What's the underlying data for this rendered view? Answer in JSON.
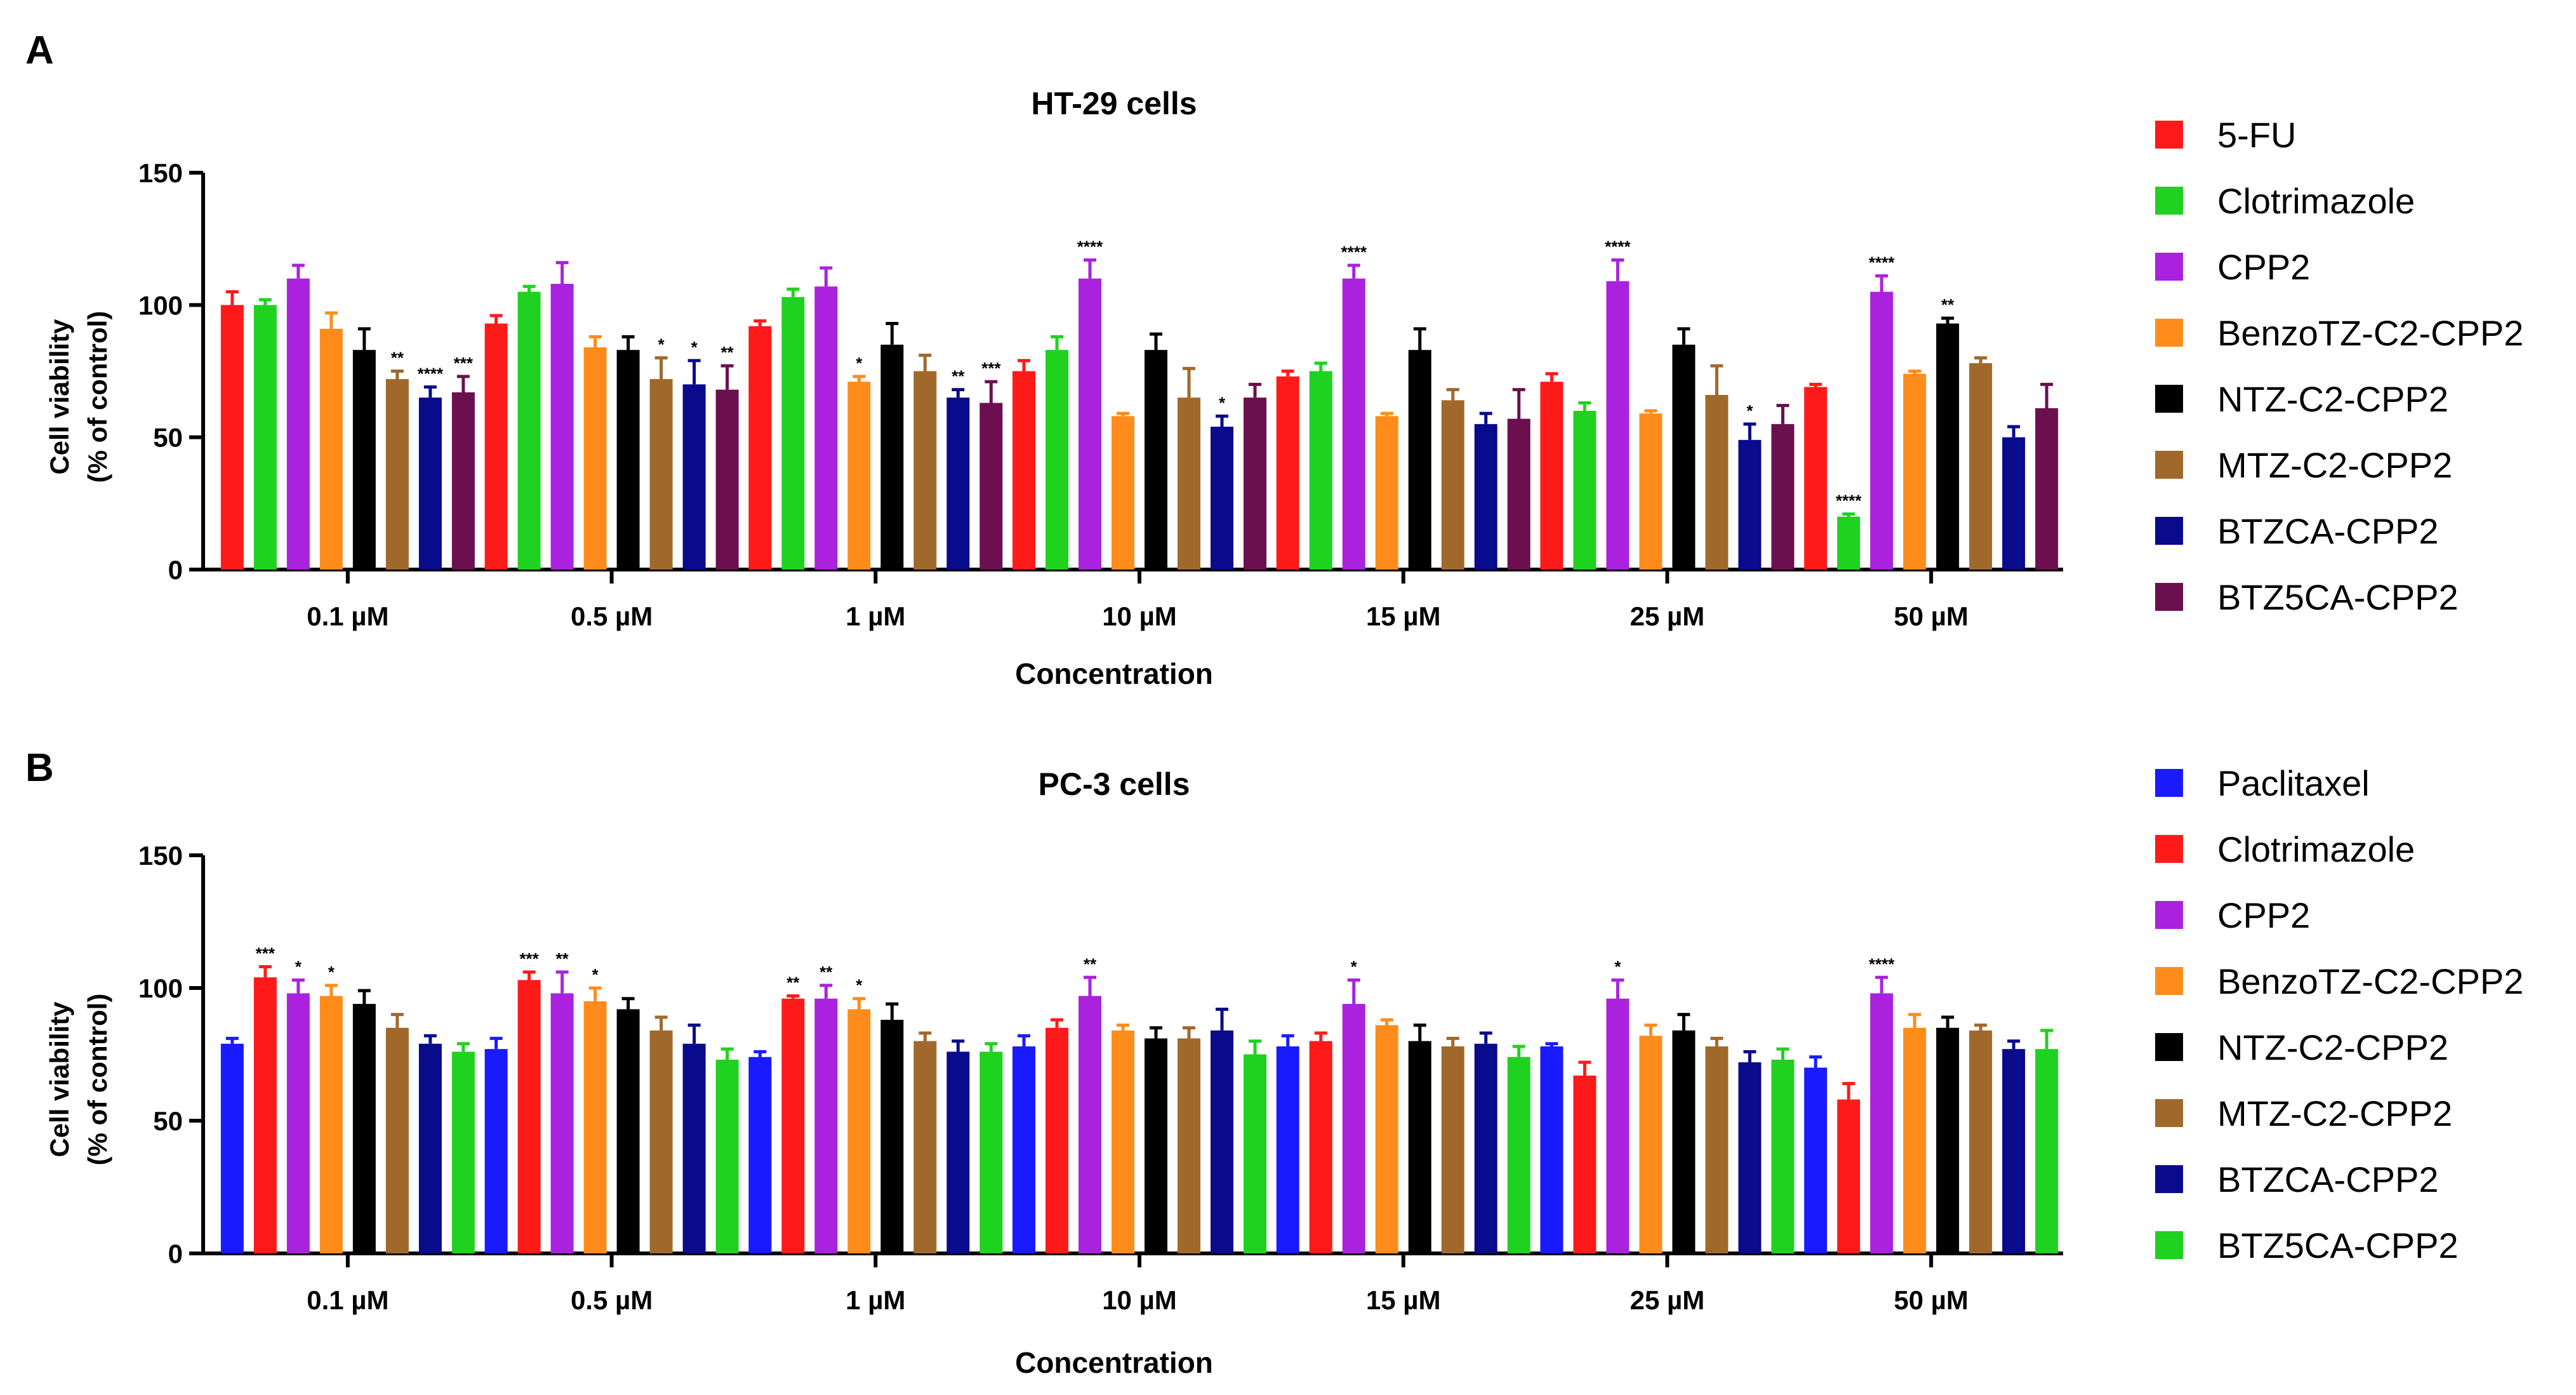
{
  "chart_data": [
    {
      "panel": "A",
      "type": "bar",
      "title": "HT-29 cells",
      "xlabel": "Concentration",
      "ylabel_lines": [
        "Cell viability",
        "(% of control)"
      ],
      "ylim": [
        0,
        150
      ],
      "yticks": [
        0,
        50,
        100,
        150
      ],
      "categories": [
        "0.1 µM",
        "0.5 µM",
        "1 µM",
        "10 µM",
        "15 µM",
        "25 µM",
        "50 µM"
      ],
      "series": [
        {
          "name": "5-FU",
          "color": "#ff1a1a",
          "values": [
            100,
            93,
            92,
            75,
            73,
            71,
            69
          ],
          "errors": [
            5,
            3,
            2,
            4,
            2,
            3,
            1
          ],
          "stars": [
            "",
            "",
            "",
            "",
            "",
            "",
            ""
          ]
        },
        {
          "name": "Clotrimazole",
          "color": "#1fd21f",
          "values": [
            100,
            105,
            103,
            83,
            75,
            60,
            20
          ],
          "errors": [
            2,
            2,
            3,
            5,
            3,
            3,
            1
          ],
          "stars": [
            "",
            "",
            "",
            "",
            "",
            "",
            "****"
          ]
        },
        {
          "name": "CPP2",
          "color": "#aa22dd",
          "values": [
            110,
            108,
            107,
            110,
            110,
            109,
            105
          ],
          "errors": [
            5,
            8,
            7,
            7,
            5,
            8,
            6
          ],
          "stars": [
            "",
            "",
            "",
            "****",
            "****",
            "****",
            "****"
          ]
        },
        {
          "name": "BenzoTZ-C2-CPP2",
          "color": "#ff8c1a",
          "values": [
            91,
            84,
            71,
            58,
            58,
            59,
            74
          ],
          "errors": [
            6,
            4,
            2,
            1,
            1,
            1,
            1
          ],
          "stars": [
            "",
            "",
            "*",
            "",
            "",
            "",
            ""
          ]
        },
        {
          "name": "NTZ-C2-CPP2",
          "color": "#000000",
          "values": [
            83,
            83,
            85,
            83,
            83,
            85,
            93
          ],
          "errors": [
            8,
            5,
            8,
            6,
            8,
            6,
            2
          ],
          "stars": [
            "",
            "",
            "",
            "",
            "",
            "",
            "**"
          ]
        },
        {
          "name": "MTZ-C2-CPP2",
          "color": "#a0692b",
          "values": [
            72,
            72,
            75,
            65,
            64,
            66,
            78
          ],
          "errors": [
            3,
            8,
            6,
            11,
            4,
            11,
            2
          ],
          "stars": [
            "**",
            "*",
            "",
            "",
            "",
            "",
            ""
          ]
        },
        {
          "name": "BTZCA-CPP2",
          "color": "#0a0a8c",
          "values": [
            65,
            70,
            65,
            54,
            55,
            49,
            50
          ],
          "errors": [
            4,
            9,
            3,
            4,
            4,
            6,
            4
          ],
          "stars": [
            "****",
            "*",
            "**",
            "*",
            "",
            "*",
            ""
          ]
        },
        {
          "name": "BTZ5CA-CPP2",
          "color": "#6b0f4f",
          "values": [
            67,
            68,
            63,
            65,
            57,
            55,
            61
          ],
          "errors": [
            6,
            9,
            8,
            5,
            11,
            7,
            9
          ],
          "stars": [
            "***",
            "**",
            "***",
            "",
            "",
            "",
            ""
          ]
        }
      ]
    },
    {
      "panel": "B",
      "type": "bar",
      "title": "PC-3 cells",
      "xlabel": "Concentration",
      "ylabel_lines": [
        "Cell viability",
        "(% of control)"
      ],
      "ylim": [
        0,
        150
      ],
      "yticks": [
        0,
        50,
        100,
        150
      ],
      "categories": [
        "0.1 µM",
        "0.5 µM",
        "1 µM",
        "10 µM",
        "15 µM",
        "25 µM",
        "50 µM"
      ],
      "series": [
        {
          "name": "Paclitaxel",
          "color": "#1a1aff",
          "values": [
            79,
            77,
            74,
            78,
            78,
            78,
            70
          ],
          "errors": [
            2,
            4,
            2,
            4,
            4,
            1,
            4
          ],
          "stars": [
            "",
            "",
            "",
            "",
            "",
            "",
            ""
          ]
        },
        {
          "name": "Clotrimazole",
          "color": "#ff1a1a",
          "values": [
            104,
            103,
            96,
            85,
            80,
            67,
            58
          ],
          "errors": [
            4,
            3,
            1,
            3,
            3,
            5,
            6
          ],
          "stars": [
            "***",
            "***",
            "**",
            "",
            "",
            "",
            ""
          ]
        },
        {
          "name": "CPP2",
          "color": "#aa22dd",
          "values": [
            98,
            98,
            96,
            97,
            94,
            96,
            98
          ],
          "errors": [
            5,
            8,
            5,
            7,
            9,
            7,
            6
          ],
          "stars": [
            "*",
            "**",
            "**",
            "**",
            "*",
            "*",
            "****"
          ]
        },
        {
          "name": "BenzoTZ-C2-CPP2",
          "color": "#ff8c1a",
          "values": [
            97,
            95,
            92,
            84,
            86,
            82,
            85
          ],
          "errors": [
            4,
            5,
            4,
            2,
            2,
            4,
            5
          ],
          "stars": [
            "*",
            "*",
            "*",
            "",
            "",
            "",
            ""
          ]
        },
        {
          "name": "NTZ-C2-CPP2",
          "color": "#000000",
          "values": [
            94,
            92,
            88,
            81,
            80,
            84,
            85
          ],
          "errors": [
            5,
            4,
            6,
            4,
            6,
            6,
            4
          ],
          "stars": [
            "",
            "",
            "",
            "",
            "",
            "",
            ""
          ]
        },
        {
          "name": "MTZ-C2-CPP2",
          "color": "#a0692b",
          "values": [
            85,
            84,
            80,
            81,
            78,
            78,
            84
          ],
          "errors": [
            5,
            5,
            3,
            4,
            3,
            3,
            2
          ],
          "stars": [
            "",
            "",
            "",
            "",
            "",
            "",
            ""
          ]
        },
        {
          "name": "BTZCA-CPP2",
          "color": "#0a0a8c",
          "values": [
            79,
            79,
            76,
            84,
            79,
            72,
            77
          ],
          "errors": [
            3,
            7,
            4,
            8,
            4,
            4,
            3
          ],
          "stars": [
            "",
            "",
            "",
            "",
            "",
            "",
            ""
          ]
        },
        {
          "name": "BTZ5CA-CPP2",
          "color": "#1fd21f",
          "values": [
            76,
            73,
            76,
            75,
            74,
            73,
            77
          ],
          "errors": [
            3,
            4,
            3,
            5,
            4,
            4,
            7
          ],
          "stars": [
            "",
            "",
            "",
            "",
            "",
            "",
            ""
          ]
        }
      ]
    }
  ]
}
